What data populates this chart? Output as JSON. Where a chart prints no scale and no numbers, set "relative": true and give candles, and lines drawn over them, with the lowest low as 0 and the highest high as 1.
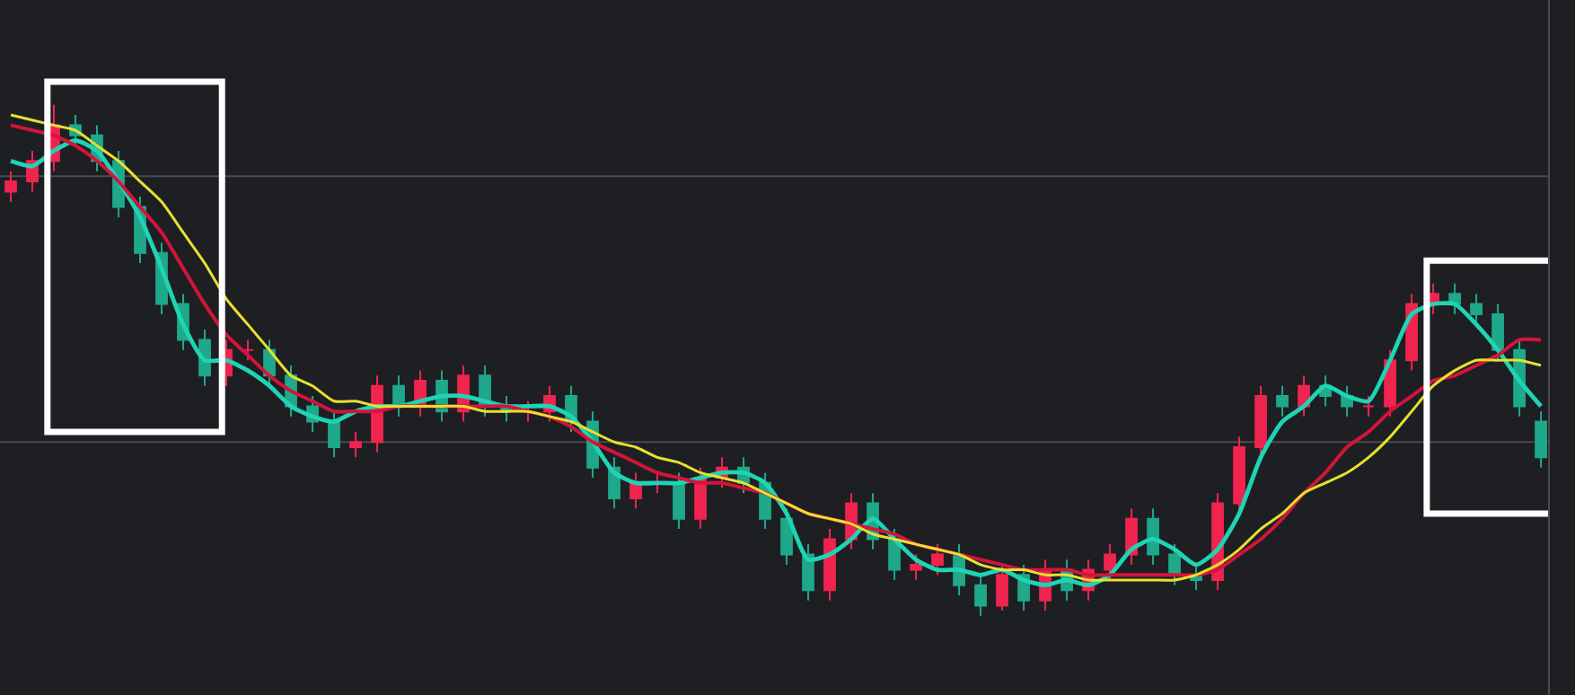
{
  "chart_data": {
    "type": "candlestick",
    "relative": true,
    "categories": [
      null,
      null,
      null,
      null,
      null,
      null,
      null,
      null,
      null,
      null,
      null,
      null,
      null,
      null,
      null,
      null,
      null,
      null,
      null,
      null,
      null,
      null,
      null,
      null,
      null,
      null,
      null,
      null,
      null,
      null,
      null,
      null,
      null,
      null,
      null,
      null,
      null,
      null,
      null,
      null,
      null,
      null,
      null,
      null,
      null,
      null,
      null,
      null,
      null,
      null,
      null,
      null,
      null,
      null,
      null,
      null,
      null,
      null,
      null,
      null,
      null,
      null,
      null,
      null,
      null,
      null,
      null,
      null,
      null,
      null,
      null,
      null
    ],
    "ohlc": [
      [
        0.83,
        0.87,
        0.81,
        0.85
      ],
      [
        0.85,
        0.91,
        0.83,
        0.89
      ],
      [
        0.89,
        1.0,
        0.87,
        0.96
      ],
      [
        0.96,
        0.98,
        0.92,
        0.94
      ],
      [
        0.94,
        0.96,
        0.87,
        0.89
      ],
      [
        0.89,
        0.91,
        0.78,
        0.8
      ],
      [
        0.8,
        0.82,
        0.69,
        0.71
      ],
      [
        0.71,
        0.73,
        0.59,
        0.61
      ],
      [
        0.61,
        0.63,
        0.52,
        0.54
      ],
      [
        0.54,
        0.56,
        0.45,
        0.47
      ],
      [
        0.47,
        0.54,
        0.45,
        0.52
      ],
      [
        0.52,
        0.54,
        0.5,
        0.52
      ],
      [
        0.52,
        0.54,
        0.45,
        0.47
      ],
      [
        0.47,
        0.49,
        0.39,
        0.41
      ],
      [
        0.41,
        0.43,
        0.36,
        0.38
      ],
      [
        0.38,
        0.4,
        0.31,
        0.33
      ],
      [
        0.33,
        0.36,
        0.31,
        0.34
      ],
      [
        0.34,
        0.47,
        0.32,
        0.45
      ],
      [
        0.45,
        0.47,
        0.39,
        0.41
      ],
      [
        0.41,
        0.48,
        0.39,
        0.46
      ],
      [
        0.46,
        0.48,
        0.38,
        0.4
      ],
      [
        0.4,
        0.49,
        0.38,
        0.47
      ],
      [
        0.47,
        0.49,
        0.39,
        0.41
      ],
      [
        0.41,
        0.43,
        0.38,
        0.4
      ],
      [
        0.4,
        0.42,
        0.38,
        0.4
      ],
      [
        0.4,
        0.45,
        0.38,
        0.43
      ],
      [
        0.43,
        0.45,
        0.36,
        0.38
      ],
      [
        0.38,
        0.4,
        0.27,
        0.29
      ],
      [
        0.29,
        0.31,
        0.21,
        0.23
      ],
      [
        0.23,
        0.28,
        0.21,
        0.26
      ],
      [
        0.26,
        0.28,
        0.24,
        0.26
      ],
      [
        0.26,
        0.28,
        0.17,
        0.19
      ],
      [
        0.19,
        0.29,
        0.17,
        0.27
      ],
      [
        0.27,
        0.31,
        0.25,
        0.29
      ],
      [
        0.29,
        0.31,
        0.24,
        0.26
      ],
      [
        0.26,
        0.28,
        0.17,
        0.19
      ],
      [
        0.19,
        0.21,
        0.1,
        0.12
      ],
      [
        0.12,
        0.14,
        0.03,
        0.05
      ],
      [
        0.05,
        0.17,
        0.03,
        0.15
      ],
      [
        0.15,
        0.24,
        0.13,
        0.22
      ],
      [
        0.22,
        0.24,
        0.13,
        0.15
      ],
      [
        0.15,
        0.17,
        0.07,
        0.09
      ],
      [
        0.09,
        0.12,
        0.07,
        0.1
      ],
      [
        0.1,
        0.14,
        0.08,
        0.12
      ],
      [
        0.12,
        0.14,
        0.04,
        0.06
      ],
      [
        0.06,
        0.08,
        0.0,
        0.02
      ],
      [
        0.02,
        0.1,
        0.01,
        0.08
      ],
      [
        0.08,
        0.1,
        0.01,
        0.03
      ],
      [
        0.03,
        0.11,
        0.01,
        0.09
      ],
      [
        0.09,
        0.11,
        0.03,
        0.05
      ],
      [
        0.05,
        0.11,
        0.03,
        0.09
      ],
      [
        0.09,
        0.14,
        0.07,
        0.12
      ],
      [
        0.12,
        0.21,
        0.1,
        0.19
      ],
      [
        0.19,
        0.21,
        0.1,
        0.12
      ],
      [
        0.12,
        0.14,
        0.06,
        0.08
      ],
      [
        0.08,
        0.1,
        0.05,
        0.07
      ],
      [
        0.07,
        0.24,
        0.05,
        0.22
      ],
      [
        0.22,
        0.35,
        0.2,
        0.33
      ],
      [
        0.33,
        0.45,
        0.31,
        0.43
      ],
      [
        0.43,
        0.45,
        0.39,
        0.41
      ],
      [
        0.41,
        0.47,
        0.39,
        0.45
      ],
      [
        0.45,
        0.47,
        0.41,
        0.43
      ],
      [
        0.43,
        0.45,
        0.39,
        0.41
      ],
      [
        0.41,
        0.43,
        0.39,
        0.41
      ],
      [
        0.41,
        0.52,
        0.39,
        0.5
      ],
      [
        0.5,
        0.63,
        0.48,
        0.61
      ],
      [
        0.61,
        0.65,
        0.59,
        0.63
      ],
      [
        0.63,
        0.65,
        0.59,
        0.61
      ],
      [
        0.61,
        0.63,
        0.57,
        0.59
      ],
      [
        0.59,
        0.61,
        0.5,
        0.52
      ],
      [
        0.52,
        0.54,
        0.39,
        0.41
      ],
      [
        0.38,
        0.4,
        0.29,
        0.31
      ]
    ],
    "colors": [
      "#f0244f",
      "#f0244f",
      "#f0244f",
      "#1fa88a",
      "#1fa88a",
      "#1fa88a",
      "#1fa88a",
      "#1fa88a",
      "#1fa88a",
      "#1fa88a",
      "#f0244f",
      "#f0244f",
      "#1fa88a",
      "#1fa88a",
      "#1fa88a",
      "#1fa88a",
      "#f0244f",
      "#f0244f",
      "#1fa88a",
      "#f0244f",
      "#1fa88a",
      "#f0244f",
      "#1fa88a",
      "#1fa88a",
      "#f0244f",
      "#f0244f",
      "#1fa88a",
      "#1fa88a",
      "#1fa88a",
      "#f0244f",
      "#f0244f",
      "#1fa88a",
      "#f0244f",
      "#f0244f",
      "#1fa88a",
      "#1fa88a",
      "#1fa88a",
      "#1fa88a",
      "#f0244f",
      "#f0244f",
      "#1fa88a",
      "#1fa88a",
      "#f0244f",
      "#f0244f",
      "#1fa88a",
      "#1fa88a",
      "#f0244f",
      "#1fa88a",
      "#f0244f",
      "#1fa88a",
      "#f0244f",
      "#f0244f",
      "#f0244f",
      "#1fa88a",
      "#1fa88a",
      "#1fa88a",
      "#f0244f",
      "#f0244f",
      "#f0244f",
      "#1fa88a",
      "#f0244f",
      "#1fa88a",
      "#1fa88a",
      "#f0244f",
      "#f0244f",
      "#f0244f",
      "#f0244f",
      "#1fa88a",
      "#1fa88a",
      "#1fa88a",
      "#1fa88a",
      "#1fa88a"
    ],
    "series": [
      {
        "type": "line",
        "color": "#1ed4b4",
        "values": [
          0.89,
          0.88,
          0.91,
          0.93,
          0.91,
          0.85,
          0.78,
          0.68,
          0.57,
          0.5,
          0.5,
          0.48,
          0.45,
          0.41,
          0.39,
          0.38,
          0.4,
          0.41,
          0.41,
          0.42,
          0.43,
          0.43,
          0.42,
          0.41,
          0.41,
          0.41,
          0.39,
          0.34,
          0.28,
          0.26,
          0.26,
          0.26,
          0.27,
          0.28,
          0.28,
          0.26,
          0.2,
          0.11,
          0.12,
          0.15,
          0.19,
          0.15,
          0.11,
          0.09,
          0.09,
          0.08,
          0.09,
          0.07,
          0.06,
          0.07,
          0.06,
          0.08,
          0.13,
          0.15,
          0.13,
          0.1,
          0.13,
          0.2,
          0.31,
          0.38,
          0.41,
          0.45,
          0.43,
          0.42,
          0.5,
          0.59,
          0.61,
          0.61,
          0.57,
          0.52,
          0.46,
          0.41
        ]
      },
      {
        "type": "line",
        "color": "#d4143c",
        "values": [
          0.96,
          0.95,
          0.94,
          0.92,
          0.89,
          0.85,
          0.8,
          0.75,
          0.68,
          0.61,
          0.55,
          0.51,
          0.47,
          0.44,
          0.42,
          0.4,
          0.4,
          0.4,
          0.41,
          0.41,
          0.41,
          0.41,
          0.41,
          0.41,
          0.4,
          0.39,
          0.37,
          0.34,
          0.32,
          0.3,
          0.28,
          0.27,
          0.26,
          0.26,
          0.25,
          0.24,
          0.22,
          0.2,
          0.19,
          0.18,
          0.17,
          0.16,
          0.14,
          0.13,
          0.12,
          0.11,
          0.1,
          0.09,
          0.09,
          0.09,
          0.08,
          0.08,
          0.08,
          0.08,
          0.08,
          0.08,
          0.09,
          0.12,
          0.15,
          0.19,
          0.24,
          0.28,
          0.33,
          0.36,
          0.4,
          0.43,
          0.46,
          0.47,
          0.49,
          0.51,
          0.54,
          0.54
        ]
      },
      {
        "type": "line",
        "color": "#e6e030",
        "values": [
          0.98,
          0.97,
          0.96,
          0.95,
          0.92,
          0.89,
          0.85,
          0.81,
          0.75,
          0.69,
          0.62,
          0.57,
          0.52,
          0.47,
          0.45,
          0.42,
          0.42,
          0.41,
          0.41,
          0.41,
          0.41,
          0.41,
          0.4,
          0.4,
          0.4,
          0.39,
          0.38,
          0.36,
          0.34,
          0.33,
          0.31,
          0.3,
          0.28,
          0.27,
          0.26,
          0.24,
          0.22,
          0.2,
          0.19,
          0.18,
          0.16,
          0.15,
          0.14,
          0.13,
          0.12,
          0.1,
          0.09,
          0.09,
          0.08,
          0.08,
          0.07,
          0.07,
          0.07,
          0.07,
          0.07,
          0.08,
          0.1,
          0.13,
          0.17,
          0.2,
          0.24,
          0.26,
          0.28,
          0.31,
          0.35,
          0.4,
          0.45,
          0.48,
          0.5,
          0.5,
          0.5,
          0.49
        ]
      }
    ],
    "ref_lines": [
      {
        "axis": "y",
        "value": 0.86,
        "color": "#4a4b50"
      },
      {
        "axis": "y",
        "value": 0.34,
        "color": "#4a4b50"
      }
    ]
  }
}
